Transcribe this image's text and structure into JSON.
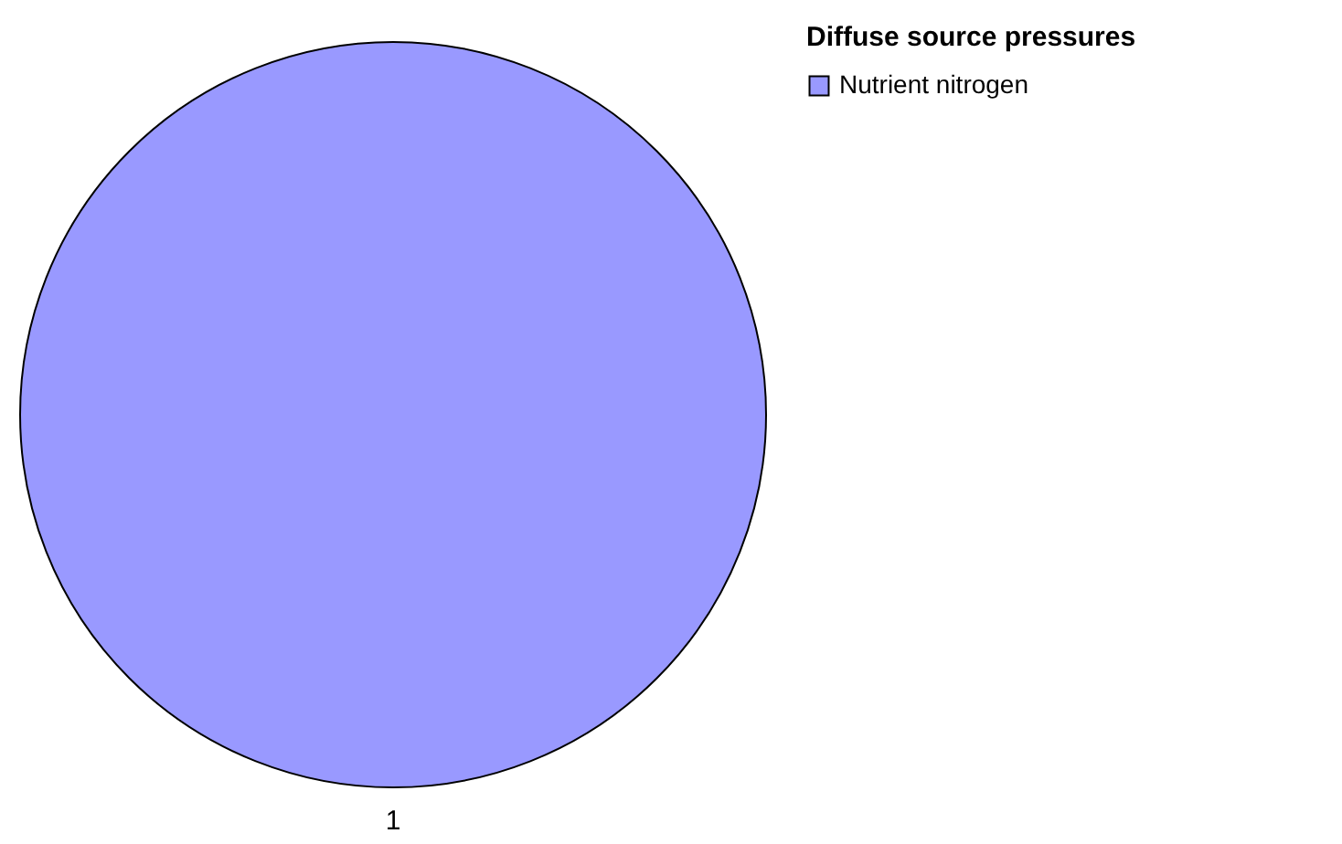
{
  "chart_data": {
    "type": "pie",
    "legend_title": "Diffuse source pressures",
    "categories": [
      "Nutrient nitrogen"
    ],
    "values": [
      1
    ],
    "colors": [
      "#9999ff"
    ],
    "data_labels": true,
    "legend": "top right"
  }
}
